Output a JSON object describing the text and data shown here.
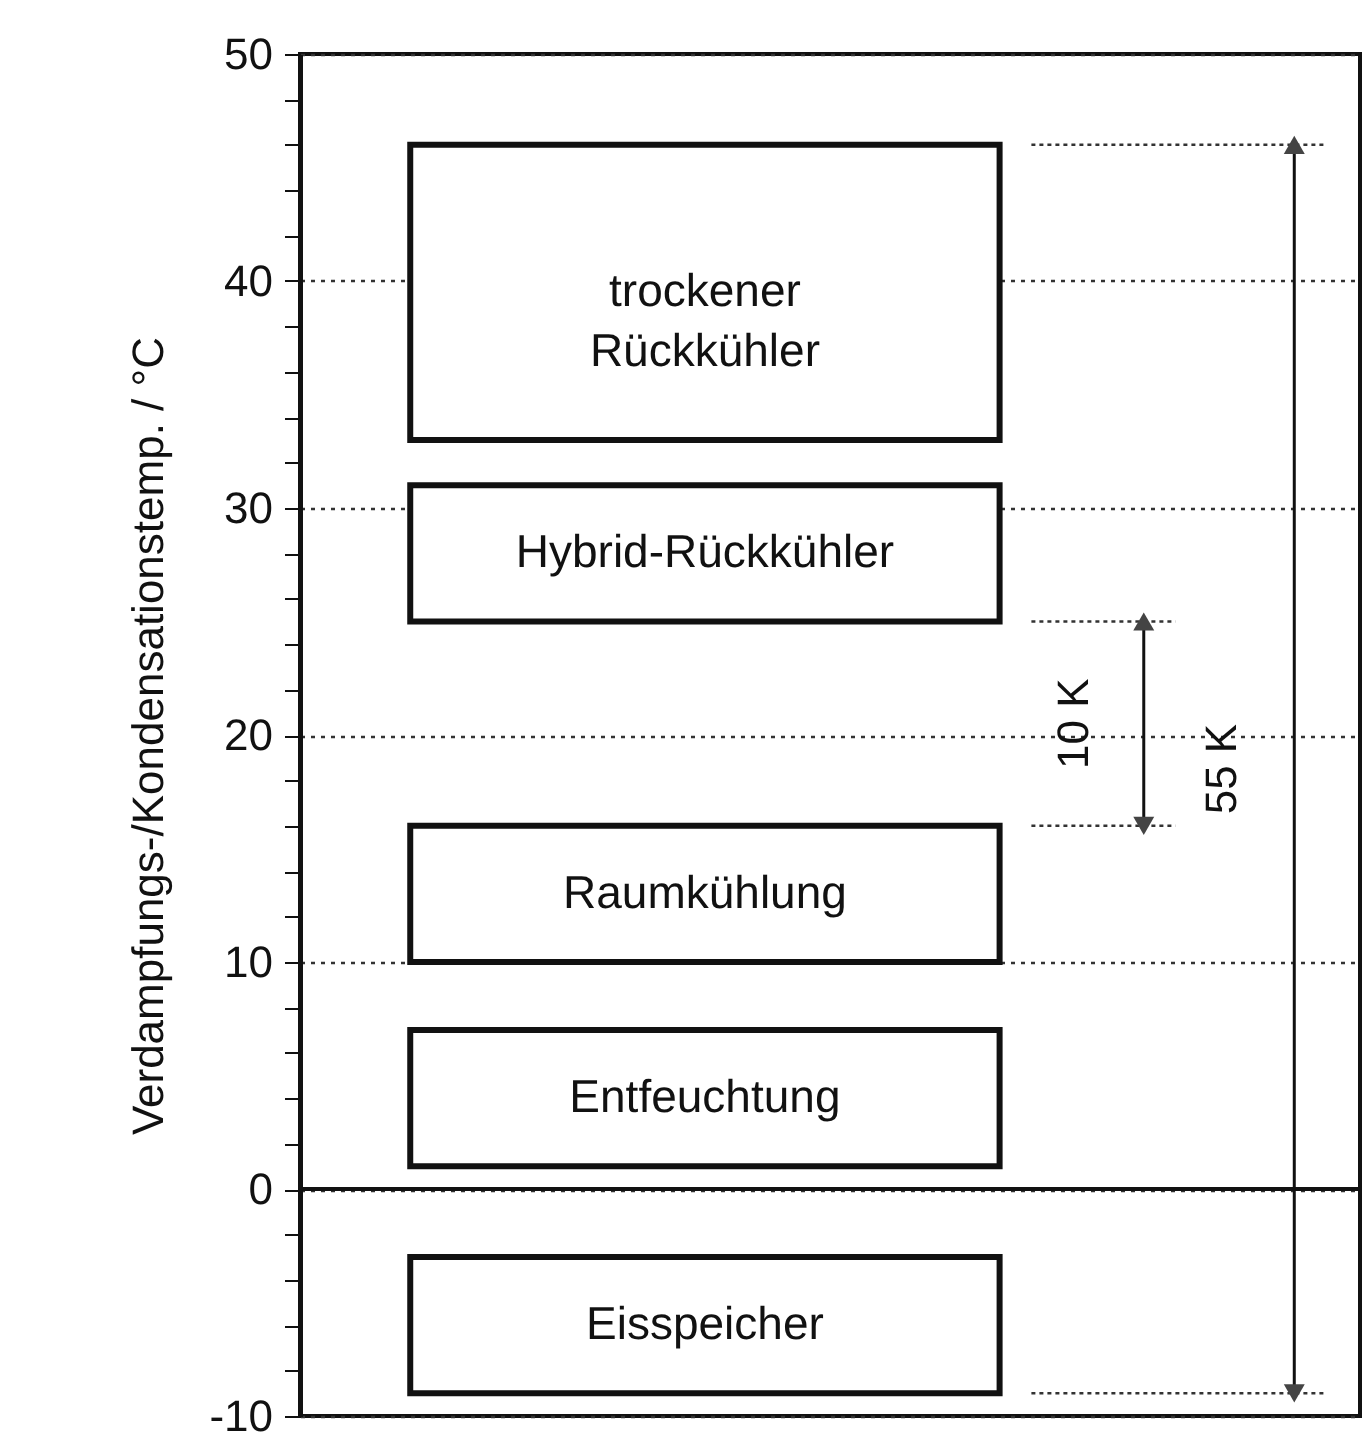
{
  "chart_data": {
    "type": "bar",
    "ylabel": "Verdampfungs-/Kondensationstemp.  / °C",
    "categories": [
      null
    ],
    "series": [
      {
        "name": "trockener\nRückkühler",
        "color": "#ffffff",
        "base": [
          33
        ],
        "values": [
          13
        ]
      },
      {
        "name": "Hybrid-Rückkühler",
        "color": "#ffffff",
        "base": [
          25
        ],
        "values": [
          6
        ]
      },
      {
        "name": "Raumkühlung",
        "color": "#ffffff",
        "base": [
          10
        ],
        "values": [
          6
        ]
      },
      {
        "name": "Entfeuchtung",
        "color": "#ffffff",
        "base": [
          1
        ],
        "values": [
          6
        ]
      },
      {
        "name": "Eisspeicher",
        "color": "#ffffff",
        "base": [
          -9
        ],
        "values": [
          6
        ]
      }
    ],
    "ylim": [
      -10,
      50
    ],
    "yticks": [
      -10,
      {
        "value": -8,
        "label": null
      },
      {
        "value": -6,
        "label": null
      },
      {
        "value": -4,
        "label": null
      },
      {
        "value": -2,
        "label": null
      },
      0,
      {
        "value": 2,
        "label": null
      },
      {
        "value": 4,
        "label": null
      },
      {
        "value": 6,
        "label": null
      },
      {
        "value": 8,
        "label": null
      },
      10,
      {
        "value": 12,
        "label": null
      },
      {
        "value": 14,
        "label": null
      },
      {
        "value": 16,
        "label": null
      },
      {
        "value": 18,
        "label": null
      },
      20,
      {
        "value": 22,
        "label": null
      },
      {
        "value": 24,
        "label": null
      },
      {
        "value": 26,
        "label": null
      },
      {
        "value": 28,
        "label": null
      },
      30,
      {
        "value": 32,
        "label": null
      },
      {
        "value": 34,
        "label": null
      },
      {
        "value": 36,
        "label": null
      },
      {
        "value": 38,
        "label": null
      },
      40,
      {
        "value": 42,
        "label": null
      },
      {
        "value": 44,
        "label": null
      },
      {
        "value": 46,
        "label": null
      },
      {
        "value": 48,
        "label": null
      },
      50
    ],
    "grid": "y",
    "line_style": "dotted",
    "ref_lines": [
      {
        "axis": "y",
        "value": 0
      }
    ],
    "annotations": [
      "10 K",
      "55 K"
    ]
  }
}
